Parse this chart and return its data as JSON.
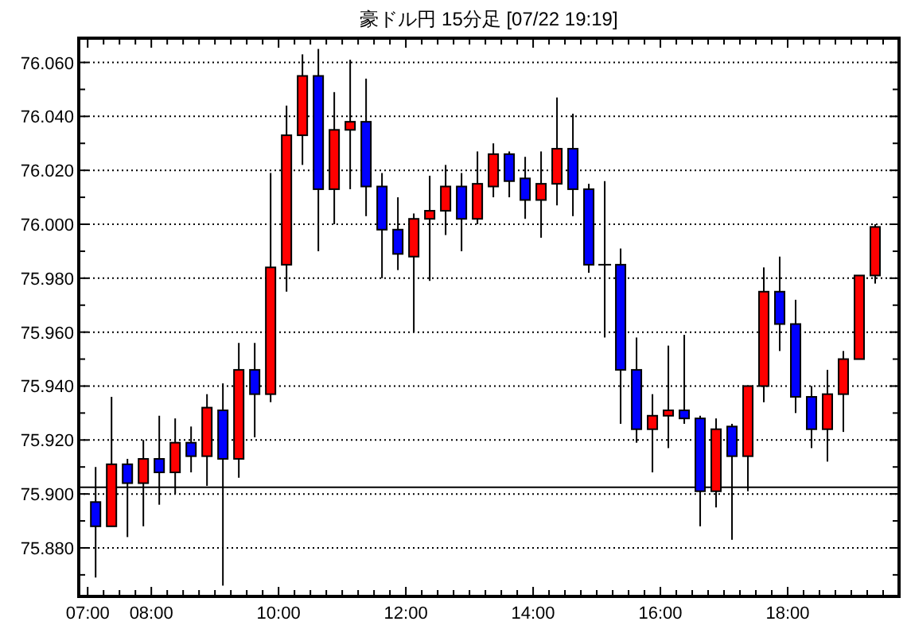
{
  "chart_data": {
    "type": "candlestick",
    "title": "豪ドル円 15分足 [07/22 19:19]",
    "x": [
      7.125,
      7.375,
      7.625,
      7.875,
      8.125,
      8.375,
      8.625,
      8.875,
      9.125,
      9.375,
      9.625,
      9.875,
      10.125,
      10.375,
      10.625,
      10.875,
      11.125,
      11.375,
      11.625,
      11.875,
      12.125,
      12.375,
      12.625,
      12.875,
      13.125,
      13.375,
      13.625,
      13.875,
      14.125,
      14.375,
      14.625,
      14.875,
      15.125,
      15.375,
      15.625,
      15.875,
      16.125,
      16.375,
      16.625,
      16.875,
      17.125,
      17.375,
      17.625,
      17.875,
      18.125,
      18.375,
      18.625,
      18.875,
      19.125,
      19.375
    ],
    "ohlc": [
      [
        75.897,
        75.91,
        75.869,
        75.888
      ],
      [
        75.888,
        75.936,
        75.888,
        75.911
      ],
      [
        75.911,
        75.913,
        75.884,
        75.904
      ],
      [
        75.904,
        75.92,
        75.888,
        75.913
      ],
      [
        75.913,
        75.929,
        75.896,
        75.908
      ],
      [
        75.908,
        75.928,
        75.9,
        75.919
      ],
      [
        75.919,
        75.925,
        75.908,
        75.914
      ],
      [
        75.914,
        75.937,
        75.903,
        75.932
      ],
      [
        75.931,
        75.941,
        75.866,
        75.913
      ],
      [
        75.913,
        75.956,
        75.906,
        75.946
      ],
      [
        75.946,
        75.956,
        75.921,
        75.937
      ],
      [
        75.937,
        76.019,
        75.934,
        75.984
      ],
      [
        75.985,
        76.044,
        75.975,
        76.033
      ],
      [
        76.033,
        76.063,
        76.022,
        76.055
      ],
      [
        76.055,
        76.065,
        75.99,
        76.013
      ],
      [
        76.013,
        76.049,
        76.0,
        76.035
      ],
      [
        76.035,
        76.061,
        76.013,
        76.038
      ],
      [
        76.038,
        76.054,
        76.003,
        76.014
      ],
      [
        76.014,
        76.019,
        75.98,
        75.998
      ],
      [
        75.998,
        76.01,
        75.983,
        75.989
      ],
      [
        75.988,
        76.004,
        75.96,
        76.002
      ],
      [
        76.002,
        76.018,
        75.979,
        76.005
      ],
      [
        76.005,
        76.022,
        75.996,
        76.014
      ],
      [
        76.014,
        76.019,
        75.99,
        76.002
      ],
      [
        76.002,
        76.027,
        76.0,
        76.015
      ],
      [
        76.014,
        76.03,
        76.01,
        76.026
      ],
      [
        76.026,
        76.027,
        76.01,
        76.016
      ],
      [
        76.017,
        76.025,
        76.002,
        76.009
      ],
      [
        76.009,
        76.027,
        75.995,
        76.015
      ],
      [
        76.015,
        76.047,
        76.007,
        76.028
      ],
      [
        76.028,
        76.041,
        76.003,
        76.013
      ],
      [
        76.013,
        76.015,
        75.982,
        75.985
      ],
      [
        75.985,
        76.016,
        75.958,
        75.985
      ],
      [
        75.985,
        75.991,
        75.926,
        75.946
      ],
      [
        75.946,
        75.958,
        75.919,
        75.924
      ],
      [
        75.924,
        75.937,
        75.908,
        75.929
      ],
      [
        75.929,
        75.955,
        75.917,
        75.931
      ],
      [
        75.931,
        75.959,
        75.926,
        75.928
      ],
      [
        75.928,
        75.929,
        75.888,
        75.901
      ],
      [
        75.901,
        75.928,
        75.895,
        75.924
      ],
      [
        75.925,
        75.926,
        75.883,
        75.914
      ],
      [
        75.914,
        75.94,
        75.901,
        75.94
      ],
      [
        75.94,
        75.984,
        75.934,
        75.975
      ],
      [
        75.975,
        75.988,
        75.953,
        75.963
      ],
      [
        75.963,
        75.972,
        75.93,
        75.936
      ],
      [
        75.936,
        75.94,
        75.917,
        75.924
      ],
      [
        75.924,
        75.946,
        75.912,
        75.937
      ],
      [
        75.937,
        75.953,
        75.923,
        75.95
      ],
      [
        75.95,
        75.981,
        75.95,
        75.981
      ],
      [
        75.981,
        76.0,
        75.978,
        75.999
      ]
    ],
    "colors": [
      "#0000ff",
      "#ff0000",
      "#0000ff",
      "#ff0000",
      "#0000ff",
      "#ff0000",
      "#0000ff",
      "#ff0000",
      "#0000ff",
      "#ff0000",
      "#0000ff",
      "#ff0000",
      "#ff0000",
      "#ff0000",
      "#0000ff",
      "#ff0000",
      "#ff0000",
      "#0000ff",
      "#0000ff",
      "#0000ff",
      "#ff0000",
      "#ff0000",
      "#ff0000",
      "#0000ff",
      "#ff0000",
      "#ff0000",
      "#0000ff",
      "#0000ff",
      "#ff0000",
      "#ff0000",
      "#0000ff",
      "#0000ff",
      "#000000",
      "#0000ff",
      "#0000ff",
      "#ff0000",
      "#ff0000",
      "#0000ff",
      "#0000ff",
      "#ff0000",
      "#0000ff",
      "#ff0000",
      "#ff0000",
      "#0000ff",
      "#0000ff",
      "#0000ff",
      "#ff0000",
      "#ff0000",
      "#ff0000",
      "#ff0000"
    ],
    "xlim": [
      6.86,
      19.75
    ],
    "xticks": [
      {
        "value": 7,
        "label": "07:00"
      },
      {
        "value": 7.25,
        "label": null
      },
      {
        "value": 7.5,
        "label": null
      },
      {
        "value": 7.75,
        "label": null
      },
      {
        "value": 8,
        "label": "08:00"
      },
      {
        "value": 8.25,
        "label": null
      },
      {
        "value": 8.5,
        "label": null
      },
      {
        "value": 8.75,
        "label": null
      },
      {
        "value": 9,
        "label": null
      },
      {
        "value": 9.25,
        "label": null
      },
      {
        "value": 9.5,
        "label": null
      },
      {
        "value": 9.75,
        "label": null
      },
      {
        "value": 10,
        "label": "10:00"
      },
      {
        "value": 10.25,
        "label": null
      },
      {
        "value": 10.5,
        "label": null
      },
      {
        "value": 10.75,
        "label": null
      },
      {
        "value": 11,
        "label": null
      },
      {
        "value": 11.25,
        "label": null
      },
      {
        "value": 11.5,
        "label": null
      },
      {
        "value": 11.75,
        "label": null
      },
      {
        "value": 12,
        "label": "12:00"
      },
      {
        "value": 12.25,
        "label": null
      },
      {
        "value": 12.5,
        "label": null
      },
      {
        "value": 12.75,
        "label": null
      },
      {
        "value": 13,
        "label": null
      },
      {
        "value": 13.25,
        "label": null
      },
      {
        "value": 13.5,
        "label": null
      },
      {
        "value": 13.75,
        "label": null
      },
      {
        "value": 14,
        "label": "14:00"
      },
      {
        "value": 14.25,
        "label": null
      },
      {
        "value": 14.5,
        "label": null
      },
      {
        "value": 14.75,
        "label": null
      },
      {
        "value": 15,
        "label": null
      },
      {
        "value": 15.25,
        "label": null
      },
      {
        "value": 15.5,
        "label": null
      },
      {
        "value": 15.75,
        "label": null
      },
      {
        "value": 16,
        "label": "16:00"
      },
      {
        "value": 16.25,
        "label": null
      },
      {
        "value": 16.5,
        "label": null
      },
      {
        "value": 16.75,
        "label": null
      },
      {
        "value": 17,
        "label": null
      },
      {
        "value": 17.25,
        "label": null
      },
      {
        "value": 17.5,
        "label": null
      },
      {
        "value": 17.75,
        "label": null
      },
      {
        "value": 18,
        "label": "18:00"
      },
      {
        "value": 18.25,
        "label": null
      },
      {
        "value": 18.5,
        "label": null
      },
      {
        "value": 18.75,
        "label": null
      },
      {
        "value": 19,
        "label": null
      },
      {
        "value": 19.25,
        "label": null
      },
      {
        "value": 19.5,
        "label": null
      }
    ],
    "ylim": [
      75.862,
      76.069
    ],
    "yticks": [
      {
        "value": 75.87,
        "label": null
      },
      {
        "value": 75.88,
        "label": "75.880"
      },
      {
        "value": 75.89,
        "label": null
      },
      {
        "value": 75.9,
        "label": "75.900"
      },
      {
        "value": 75.91,
        "label": null
      },
      {
        "value": 75.92,
        "label": "75.920"
      },
      {
        "value": 75.93,
        "label": null
      },
      {
        "value": 75.94,
        "label": "75.940"
      },
      {
        "value": 75.95,
        "label": null
      },
      {
        "value": 75.96,
        "label": "75.960"
      },
      {
        "value": 75.97,
        "label": null
      },
      {
        "value": 75.98,
        "label": "75.980"
      },
      {
        "value": 75.99,
        "label": null
      },
      {
        "value": 76.0,
        "label": "76.000"
      },
      {
        "value": 76.01,
        "label": null
      },
      {
        "value": 76.02,
        "label": "76.020"
      },
      {
        "value": 76.03,
        "label": null
      },
      {
        "value": 76.04,
        "label": "76.040"
      },
      {
        "value": 76.05,
        "label": null
      },
      {
        "value": 76.06,
        "label": "76.060"
      }
    ],
    "grid": "y",
    "ref_lines": [
      {
        "axis": "y",
        "value": 75.9025,
        "color": "#000000"
      }
    ]
  }
}
